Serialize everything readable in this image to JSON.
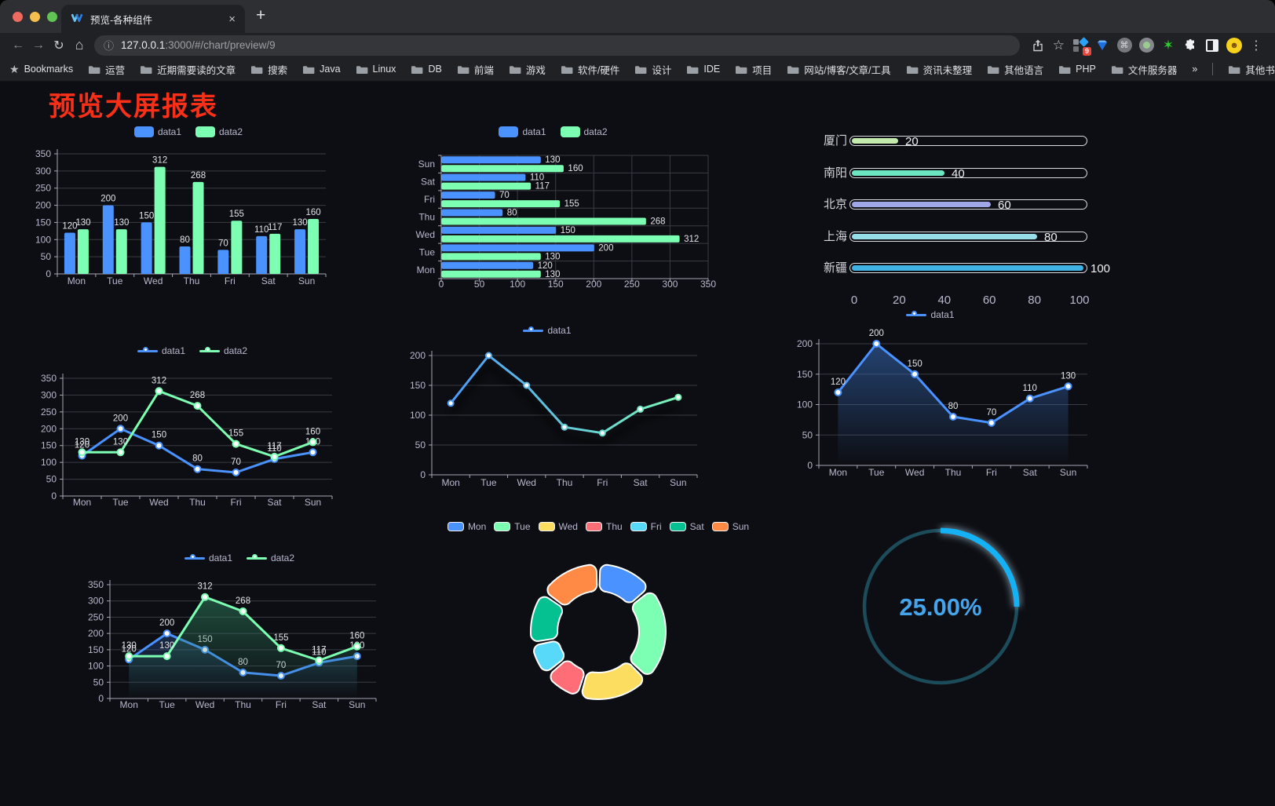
{
  "browser": {
    "tab_title": "预览-各种组件",
    "url_host": "127.0.0.1",
    "url_rest": ":3000/#/chart/preview/9",
    "bookmarks_label": "Bookmarks",
    "bookmark_folders": [
      "运营",
      "近期需要读的文章",
      "搜索",
      "Java",
      "Linux",
      "DB",
      "前端",
      "游戏",
      "软件/硬件",
      "设计",
      "IDE",
      "项目",
      "网站/博客/文章/工具",
      "资讯未整理",
      "其他语言",
      "PHP",
      "文件服务器"
    ],
    "bookmarks_overflow": "»",
    "other_bookmarks": "其他书签",
    "extension_badge": "9",
    "glyphs": {
      "close": "×",
      "new_tab": "+",
      "back": "←",
      "forward": "→",
      "reload": "↻",
      "home": "⌂",
      "info": "ⓘ",
      "star_outline": "☆",
      "bookmarks_star": "★",
      "menu": "⋮",
      "green_star": "✶"
    },
    "traffic_colors": {
      "close": "#ec6a5e",
      "minimize": "#f4bf4f",
      "zoom": "#61c354"
    }
  },
  "page": {
    "title": "预览大屏报表",
    "title_color": "#fa2f18",
    "background": "#0d0e13"
  },
  "theme": {
    "axis_line": "#a6a7b5",
    "grid_line": "#3a3b45",
    "tick_text": "#b9b8ce",
    "value_label": "#e2e3e8"
  },
  "chart_data": [
    {
      "id": "grouped-bar",
      "type": "bar",
      "legend_type": "rect",
      "categories": [
        "Mon",
        "Tue",
        "Wed",
        "Thu",
        "Fri",
        "Sat",
        "Sun"
      ],
      "ylim": [
        0,
        350
      ],
      "ystep": 50,
      "series": [
        {
          "name": "data1",
          "color": "#4992ff",
          "values": [
            120,
            200,
            150,
            80,
            70,
            110,
            130
          ]
        },
        {
          "name": "data2",
          "color": "#7cffb2",
          "values": [
            130,
            130,
            312,
            268,
            155,
            117,
            160
          ]
        }
      ]
    },
    {
      "id": "grouped-horizontal-bar",
      "type": "hbar",
      "legend_type": "rect",
      "categories_top_to_bottom": [
        "Sun",
        "Sat",
        "Fri",
        "Thu",
        "Wed",
        "Tue",
        "Mon"
      ],
      "xlim": [
        0,
        350
      ],
      "xstep": 50,
      "series": [
        {
          "name": "data1",
          "color": "#4992ff",
          "values": [
            130,
            110,
            70,
            80,
            150,
            200,
            120
          ]
        },
        {
          "name": "data2",
          "color": "#7cffb2",
          "values": [
            160,
            117,
            155,
            268,
            312,
            130,
            130
          ]
        }
      ]
    },
    {
      "id": "city-progress",
      "type": "progress",
      "xticks": [
        0,
        20,
        40,
        60,
        80,
        100
      ],
      "items": [
        {
          "label": "厦门",
          "value": 20,
          "color": "#c4ebad"
        },
        {
          "label": "南阳",
          "value": 40,
          "color": "#6be6c1"
        },
        {
          "label": "北京",
          "value": 60,
          "color": "#a0a7e6"
        },
        {
          "label": "上海",
          "value": 80,
          "color": "#96dee8"
        },
        {
          "label": "新疆",
          "value": 100,
          "color": "#3fb1e3"
        }
      ]
    },
    {
      "id": "two-series-line",
      "type": "line",
      "legend_type": "line",
      "categories": [
        "Mon",
        "Tue",
        "Wed",
        "Thu",
        "Fri",
        "Sat",
        "Sun"
      ],
      "ylim": [
        0,
        350
      ],
      "ystep": 50,
      "show_labels": true,
      "series": [
        {
          "name": "data1",
          "color": "#4992ff",
          "values": [
            120,
            200,
            150,
            80,
            70,
            110,
            130
          ]
        },
        {
          "name": "data2",
          "color": "#7cffb2",
          "values": [
            130,
            130,
            312,
            268,
            155,
            117,
            160
          ]
        }
      ]
    },
    {
      "id": "gradient-line",
      "type": "line",
      "legend_type": "line",
      "categories": [
        "Mon",
        "Tue",
        "Wed",
        "Thu",
        "Fri",
        "Sat",
        "Sun"
      ],
      "ylim": [
        0,
        200
      ],
      "ystep": 50,
      "show_labels": false,
      "shadow": true,
      "gradient": [
        "#4992ff",
        "#7cffb2"
      ],
      "series": [
        {
          "name": "data1",
          "color": "#4992ff",
          "values": [
            120,
            200,
            150,
            80,
            70,
            110,
            130
          ]
        }
      ]
    },
    {
      "id": "area-line",
      "type": "line",
      "legend_type": "line",
      "categories": [
        "Mon",
        "Tue",
        "Wed",
        "Thu",
        "Fri",
        "Sat",
        "Sun"
      ],
      "ylim": [
        0,
        200
      ],
      "ystep": 50,
      "show_labels": true,
      "series": [
        {
          "name": "data1",
          "color": "#4992ff",
          "values": [
            120,
            200,
            150,
            80,
            70,
            110,
            130
          ],
          "area_from": "rgba(55,110,190,0.55)",
          "area_to": "rgba(55,110,190,0)"
        }
      ]
    },
    {
      "id": "two-series-area-line",
      "type": "line",
      "legend_type": "line",
      "categories": [
        "Mon",
        "Tue",
        "Wed",
        "Thu",
        "Fri",
        "Sat",
        "Sun"
      ],
      "ylim": [
        0,
        350
      ],
      "ystep": 50,
      "show_labels": true,
      "series": [
        {
          "name": "data1",
          "color": "#4992ff",
          "values": [
            120,
            200,
            150,
            80,
            70,
            110,
            130
          ],
          "area_from": "rgba(55,110,190,0.55)",
          "area_to": "rgba(55,110,190,0)"
        },
        {
          "name": "data2",
          "color": "#7cffb2",
          "values": [
            130,
            130,
            312,
            268,
            155,
            117,
            160
          ],
          "area_from": "rgba(46,130,94,0.6)",
          "area_to": "rgba(46,130,94,0)"
        }
      ]
    },
    {
      "id": "week-donut",
      "type": "donut",
      "legend_type": "rect-border",
      "items": [
        {
          "label": "Mon",
          "value": 120,
          "color": "#4992ff"
        },
        {
          "label": "Tue",
          "value": 200,
          "color": "#7cffb2"
        },
        {
          "label": "Wed",
          "value": 150,
          "color": "#fddd60"
        },
        {
          "label": "Thu",
          "value": 80,
          "color": "#ff6e76"
        },
        {
          "label": "Fri",
          "value": 70,
          "color": "#58d9f9"
        },
        {
          "label": "Sat",
          "value": 110,
          "color": "#05c091"
        },
        {
          "label": "Sun",
          "value": 130,
          "color": "#ff8a45"
        }
      ]
    },
    {
      "id": "percent-gauge",
      "type": "gauge",
      "value_percent": 25,
      "display": "25.00%",
      "arc_color": "#14b2f5",
      "track_color": "#1c4b5a",
      "text_color": "#45a5ec"
    }
  ]
}
